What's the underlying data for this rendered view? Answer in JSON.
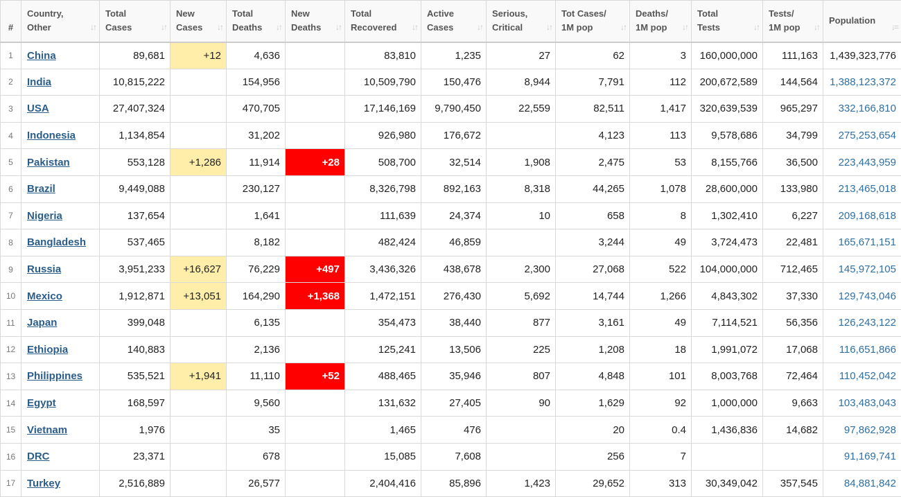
{
  "columns": [
    {
      "key": "idx",
      "label": "#",
      "sortable": false
    },
    {
      "key": "country",
      "label": "Country,\nOther",
      "sortable": true
    },
    {
      "key": "total_cases",
      "label": "Total\nCases",
      "sortable": true
    },
    {
      "key": "new_cases",
      "label": "New\nCases",
      "sortable": true
    },
    {
      "key": "total_deaths",
      "label": "Total\nDeaths",
      "sortable": true
    },
    {
      "key": "new_deaths",
      "label": "New\nDeaths",
      "sortable": true
    },
    {
      "key": "total_recovered",
      "label": "Total\nRecovered",
      "sortable": true
    },
    {
      "key": "active_cases",
      "label": "Active\nCases",
      "sortable": true
    },
    {
      "key": "serious",
      "label": "Serious,\nCritical",
      "sortable": true
    },
    {
      "key": "cases_per_m",
      "label": "Tot Cases/\n1M pop",
      "sortable": true
    },
    {
      "key": "deaths_per_m",
      "label": "Deaths/\n1M pop",
      "sortable": true
    },
    {
      "key": "total_tests",
      "label": "Total\nTests",
      "sortable": true
    },
    {
      "key": "tests_per_m",
      "label": "Tests/\n1M pop",
      "sortable": true
    },
    {
      "key": "population",
      "label": "Population",
      "sortable": true
    }
  ],
  "sort_icons": {
    "unsorted": "↓↑",
    "sorted_desc": "↓="
  },
  "colors": {
    "new_cases_highlight": "#ffeeaa",
    "new_deaths_highlight": "#ff0000",
    "link": "#2b5d8a",
    "population_link": "#2f6fa3"
  },
  "rows": [
    {
      "idx": "1",
      "country": "China",
      "total_cases": "89,681",
      "new_cases": "+12",
      "total_deaths": "4,636",
      "new_deaths": "",
      "total_recovered": "83,810",
      "active_cases": "1,235",
      "serious": "27",
      "cases_per_m": "62",
      "deaths_per_m": "3",
      "total_tests": "160,000,000",
      "tests_per_m": "111,163",
      "population": "1,439,323,776"
    },
    {
      "idx": "2",
      "country": "India",
      "total_cases": "10,815,222",
      "new_cases": "",
      "total_deaths": "154,956",
      "new_deaths": "",
      "total_recovered": "10,509,790",
      "active_cases": "150,476",
      "serious": "8,944",
      "cases_per_m": "7,791",
      "deaths_per_m": "112",
      "total_tests": "200,672,589",
      "tests_per_m": "144,564",
      "population": "1,388,123,372"
    },
    {
      "idx": "3",
      "country": "USA",
      "total_cases": "27,407,324",
      "new_cases": "",
      "total_deaths": "470,705",
      "new_deaths": "",
      "total_recovered": "17,146,169",
      "active_cases": "9,790,450",
      "serious": "22,559",
      "cases_per_m": "82,511",
      "deaths_per_m": "1,417",
      "total_tests": "320,639,539",
      "tests_per_m": "965,297",
      "population": "332,166,810"
    },
    {
      "idx": "4",
      "country": "Indonesia",
      "total_cases": "1,134,854",
      "new_cases": "",
      "total_deaths": "31,202",
      "new_deaths": "",
      "total_recovered": "926,980",
      "active_cases": "176,672",
      "serious": "",
      "cases_per_m": "4,123",
      "deaths_per_m": "113",
      "total_tests": "9,578,686",
      "tests_per_m": "34,799",
      "population": "275,253,654"
    },
    {
      "idx": "5",
      "country": "Pakistan",
      "total_cases": "553,128",
      "new_cases": "+1,286",
      "total_deaths": "11,914",
      "new_deaths": "+28",
      "total_recovered": "508,700",
      "active_cases": "32,514",
      "serious": "1,908",
      "cases_per_m": "2,475",
      "deaths_per_m": "53",
      "total_tests": "8,155,766",
      "tests_per_m": "36,500",
      "population": "223,443,959"
    },
    {
      "idx": "6",
      "country": "Brazil",
      "total_cases": "9,449,088",
      "new_cases": "",
      "total_deaths": "230,127",
      "new_deaths": "",
      "total_recovered": "8,326,798",
      "active_cases": "892,163",
      "serious": "8,318",
      "cases_per_m": "44,265",
      "deaths_per_m": "1,078",
      "total_tests": "28,600,000",
      "tests_per_m": "133,980",
      "population": "213,465,018"
    },
    {
      "idx": "7",
      "country": "Nigeria",
      "total_cases": "137,654",
      "new_cases": "",
      "total_deaths": "1,641",
      "new_deaths": "",
      "total_recovered": "111,639",
      "active_cases": "24,374",
      "serious": "10",
      "cases_per_m": "658",
      "deaths_per_m": "8",
      "total_tests": "1,302,410",
      "tests_per_m": "6,227",
      "population": "209,168,618"
    },
    {
      "idx": "8",
      "country": "Bangladesh",
      "total_cases": "537,465",
      "new_cases": "",
      "total_deaths": "8,182",
      "new_deaths": "",
      "total_recovered": "482,424",
      "active_cases": "46,859",
      "serious": "",
      "cases_per_m": "3,244",
      "deaths_per_m": "49",
      "total_tests": "3,724,473",
      "tests_per_m": "22,481",
      "population": "165,671,151"
    },
    {
      "idx": "9",
      "country": "Russia",
      "total_cases": "3,951,233",
      "new_cases": "+16,627",
      "total_deaths": "76,229",
      "new_deaths": "+497",
      "total_recovered": "3,436,326",
      "active_cases": "438,678",
      "serious": "2,300",
      "cases_per_m": "27,068",
      "deaths_per_m": "522",
      "total_tests": "104,000,000",
      "tests_per_m": "712,465",
      "population": "145,972,105"
    },
    {
      "idx": "10",
      "country": "Mexico",
      "total_cases": "1,912,871",
      "new_cases": "+13,051",
      "total_deaths": "164,290",
      "new_deaths": "+1,368",
      "total_recovered": "1,472,151",
      "active_cases": "276,430",
      "serious": "5,692",
      "cases_per_m": "14,744",
      "deaths_per_m": "1,266",
      "total_tests": "4,843,302",
      "tests_per_m": "37,330",
      "population": "129,743,046"
    },
    {
      "idx": "11",
      "country": "Japan",
      "total_cases": "399,048",
      "new_cases": "",
      "total_deaths": "6,135",
      "new_deaths": "",
      "total_recovered": "354,473",
      "active_cases": "38,440",
      "serious": "877",
      "cases_per_m": "3,161",
      "deaths_per_m": "49",
      "total_tests": "7,114,521",
      "tests_per_m": "56,356",
      "population": "126,243,122"
    },
    {
      "idx": "12",
      "country": "Ethiopia",
      "total_cases": "140,883",
      "new_cases": "",
      "total_deaths": "2,136",
      "new_deaths": "",
      "total_recovered": "125,241",
      "active_cases": "13,506",
      "serious": "225",
      "cases_per_m": "1,208",
      "deaths_per_m": "18",
      "total_tests": "1,991,072",
      "tests_per_m": "17,068",
      "population": "116,651,866"
    },
    {
      "idx": "13",
      "country": "Philippines",
      "total_cases": "535,521",
      "new_cases": "+1,941",
      "total_deaths": "11,110",
      "new_deaths": "+52",
      "total_recovered": "488,465",
      "active_cases": "35,946",
      "serious": "807",
      "cases_per_m": "4,848",
      "deaths_per_m": "101",
      "total_tests": "8,003,768",
      "tests_per_m": "72,464",
      "population": "110,452,042"
    },
    {
      "idx": "14",
      "country": "Egypt",
      "total_cases": "168,597",
      "new_cases": "",
      "total_deaths": "9,560",
      "new_deaths": "",
      "total_recovered": "131,632",
      "active_cases": "27,405",
      "serious": "90",
      "cases_per_m": "1,629",
      "deaths_per_m": "92",
      "total_tests": "1,000,000",
      "tests_per_m": "9,663",
      "population": "103,483,043"
    },
    {
      "idx": "15",
      "country": "Vietnam",
      "total_cases": "1,976",
      "new_cases": "",
      "total_deaths": "35",
      "new_deaths": "",
      "total_recovered": "1,465",
      "active_cases": "476",
      "serious": "",
      "cases_per_m": "20",
      "deaths_per_m": "0.4",
      "total_tests": "1,436,836",
      "tests_per_m": "14,682",
      "population": "97,862,928"
    },
    {
      "idx": "16",
      "country": "DRC",
      "total_cases": "23,371",
      "new_cases": "",
      "total_deaths": "678",
      "new_deaths": "",
      "total_recovered": "15,085",
      "active_cases": "7,608",
      "serious": "",
      "cases_per_m": "256",
      "deaths_per_m": "7",
      "total_tests": "",
      "tests_per_m": "",
      "population": "91,169,741"
    },
    {
      "idx": "17",
      "country": "Turkey",
      "total_cases": "2,516,889",
      "new_cases": "",
      "total_deaths": "26,577",
      "new_deaths": "",
      "total_recovered": "2,404,416",
      "active_cases": "85,896",
      "serious": "1,423",
      "cases_per_m": "29,652",
      "deaths_per_m": "313",
      "total_tests": "30,349,042",
      "tests_per_m": "357,545",
      "population": "84,881,842"
    }
  ]
}
